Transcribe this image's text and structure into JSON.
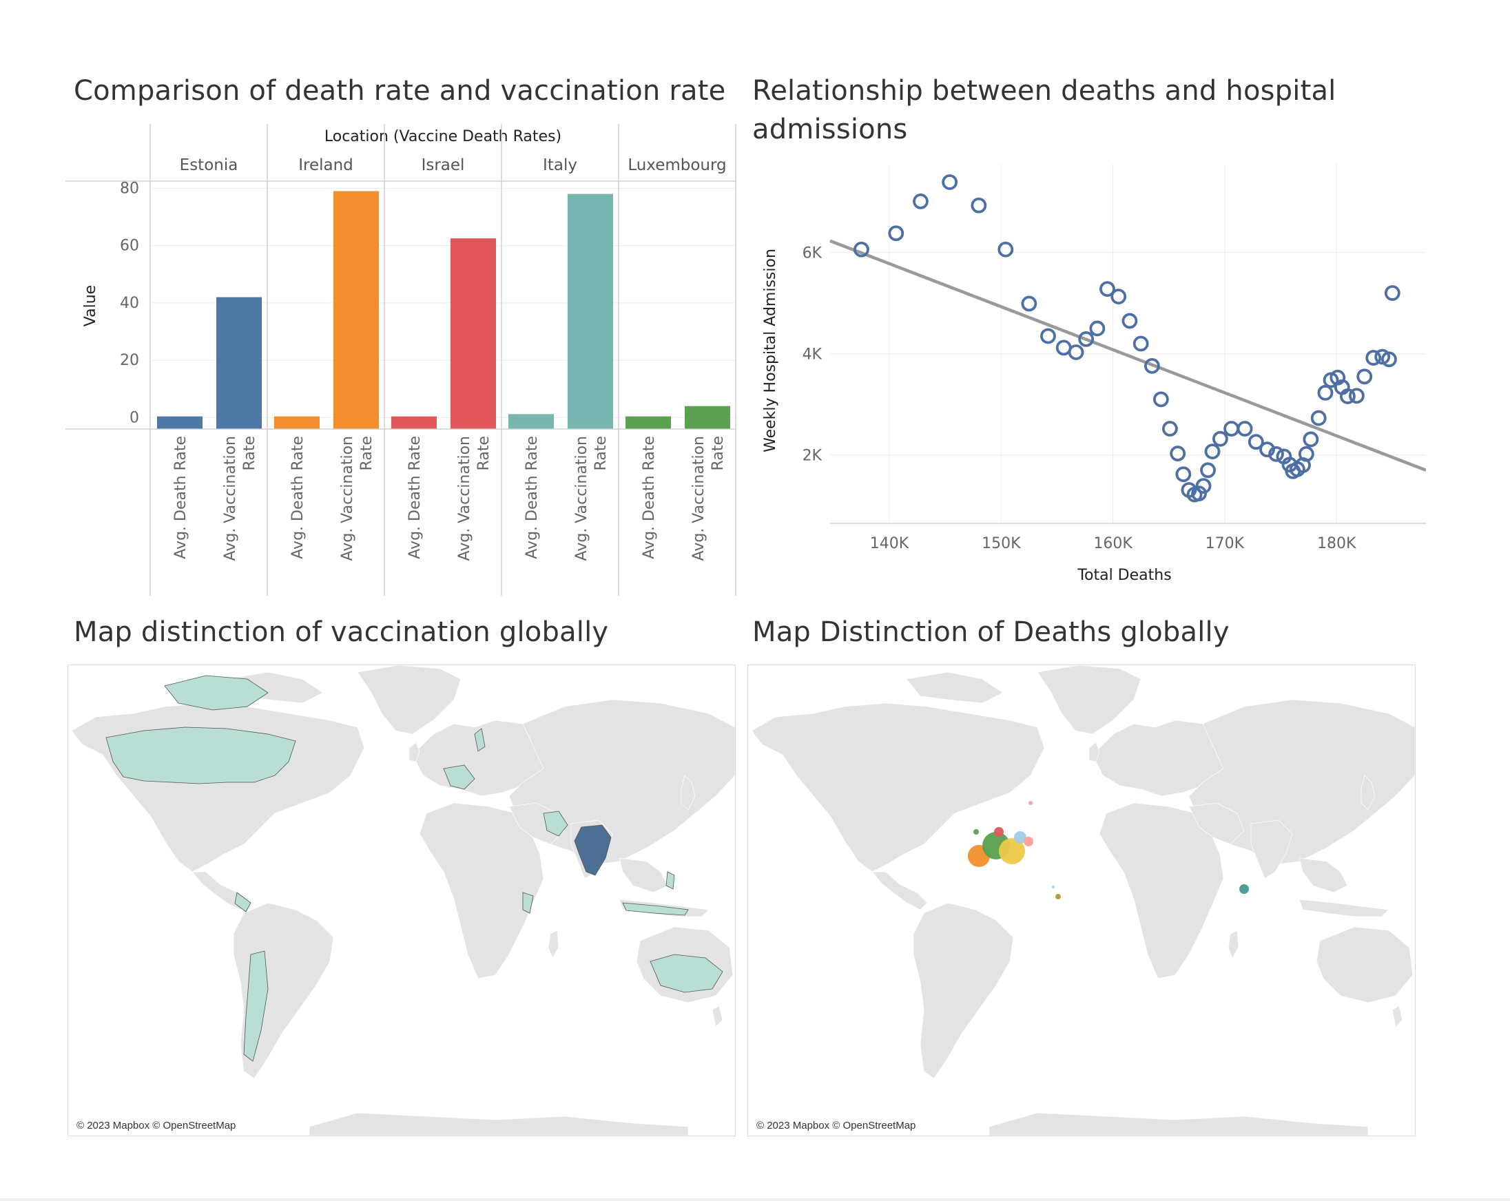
{
  "titles": {
    "bar": "Comparison of death rate and vaccination rate",
    "scatter_line1": "Relationship between deaths and hospital",
    "scatter_line2": "admissions",
    "map_vax": "Map distinction of vaccination globally",
    "map_deaths": "Map Distinction of Deaths globally"
  },
  "map_attribution": "© 2023 Mapbox © OpenStreetMap",
  "chart_data": [
    {
      "type": "bar",
      "title": "Comparison of death rate and vaccination rate",
      "column_header": "Location (Vaccine Death Rates)",
      "ylabel": "Value",
      "ylim": [
        -4,
        82
      ],
      "yticks": [
        0,
        20,
        40,
        60,
        80
      ],
      "measures": [
        "Avg. Death Rate",
        "Avg. Vaccination Rate"
      ],
      "measure_labels": [
        [
          "Avg. Death Rate"
        ],
        [
          "Avg. Vaccination",
          "Rate"
        ]
      ],
      "categories": [
        "Estonia",
        "Ireland",
        "Israel",
        "Italy",
        "Luxembourg"
      ],
      "series": [
        {
          "name": "Avg. Death Rate",
          "values": [
            0.4,
            0.4,
            0.4,
            1.2,
            0.4
          ]
        },
        {
          "name": "Avg. Vaccination Rate",
          "values": [
            42,
            79,
            62.5,
            78,
            4
          ]
        }
      ],
      "colors": {
        "Estonia": "#4e79a7",
        "Ireland": "#f28e2b",
        "Israel": "#e15759",
        "Italy": "#76b7b2",
        "Luxembourg": "#59a14f"
      }
    },
    {
      "type": "scatter",
      "title": "Relationship between deaths and hospital admissions",
      "xlabel": "Total Deaths",
      "ylabel": "Weekly Hospital Admission",
      "xticks": [
        140000,
        150000,
        160000,
        170000,
        180000
      ],
      "xtick_labels": [
        "140K",
        "150K",
        "160K",
        "170K",
        "180K"
      ],
      "yticks": [
        2000,
        4000,
        6000
      ],
      "ytick_labels": [
        "2K",
        "4K",
        "6K"
      ],
      "xlim": [
        134700,
        188000
      ],
      "ylim": [
        650,
        7750
      ],
      "point_color": "#4e6fa3",
      "trend_color": "#999999",
      "trend_line": {
        "x": [
          134700,
          188000
        ],
        "y": [
          6230,
          1700
        ]
      },
      "points": [
        [
          137500,
          6060
        ],
        [
          140600,
          6380
        ],
        [
          142800,
          7010
        ],
        [
          145400,
          7390
        ],
        [
          148000,
          6930
        ],
        [
          150400,
          6060
        ],
        [
          152500,
          4990
        ],
        [
          154200,
          4350
        ],
        [
          155600,
          4120
        ],
        [
          156700,
          4030
        ],
        [
          157600,
          4290
        ],
        [
          158600,
          4500
        ],
        [
          159500,
          5280
        ],
        [
          160500,
          5130
        ],
        [
          161500,
          4650
        ],
        [
          162500,
          4200
        ],
        [
          163500,
          3760
        ],
        [
          164300,
          3100
        ],
        [
          165100,
          2520
        ],
        [
          165800,
          2030
        ],
        [
          166300,
          1620
        ],
        [
          166800,
          1310
        ],
        [
          167300,
          1220
        ],
        [
          167700,
          1240
        ],
        [
          168100,
          1390
        ],
        [
          168500,
          1700
        ],
        [
          168900,
          2070
        ],
        [
          169600,
          2320
        ],
        [
          170600,
          2520
        ],
        [
          171800,
          2520
        ],
        [
          172800,
          2260
        ],
        [
          173800,
          2110
        ],
        [
          174600,
          2020
        ],
        [
          175300,
          1970
        ],
        [
          175800,
          1810
        ],
        [
          176100,
          1680
        ],
        [
          176500,
          1720
        ],
        [
          177000,
          1800
        ],
        [
          177300,
          2020
        ],
        [
          177700,
          2310
        ],
        [
          178400,
          2730
        ],
        [
          179000,
          3230
        ],
        [
          179500,
          3480
        ],
        [
          180100,
          3530
        ],
        [
          180500,
          3340
        ],
        [
          181000,
          3160
        ],
        [
          181800,
          3170
        ],
        [
          182500,
          3550
        ],
        [
          183300,
          3920
        ],
        [
          184100,
          3940
        ],
        [
          184700,
          3890
        ],
        [
          185000,
          5200
        ]
      ]
    }
  ],
  "maps": {
    "vaccination": {
      "highlight_color": "#b8ded6",
      "strong_color": "#4e6f94",
      "land_color": "#e3e3e3"
    },
    "deaths": {
      "land_color": "#e3e3e3",
      "bubble_colors": [
        "#f28e2b",
        "#59a14f",
        "#edc948",
        "#a0cbe8",
        "#ff9d9a",
        "#e15759",
        "#499894",
        "#b6992d"
      ]
    }
  }
}
